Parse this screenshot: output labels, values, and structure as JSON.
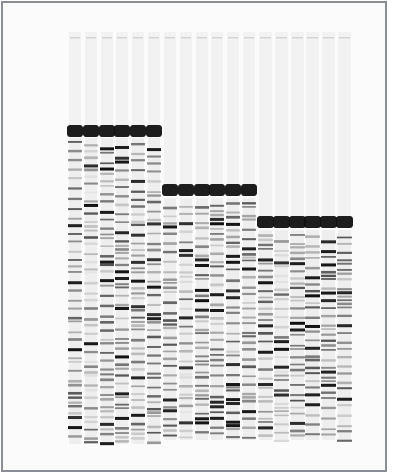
{
  "image": {
    "kind": "sequencing-gel-autoradiograph",
    "background_color": "#fbfbfb",
    "border_color": "#8a8c96",
    "band_color": "#111111",
    "lane_groups": [
      {
        "group": "left",
        "lane_count": 6
      },
      {
        "group": "middle",
        "lane_count": 6
      },
      {
        "group": "right",
        "lane_count": 6
      }
    ]
  }
}
